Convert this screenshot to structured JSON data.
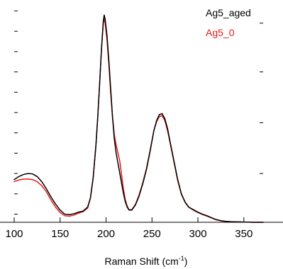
{
  "chart_data": {
    "type": "line",
    "title": "",
    "xlabel": "Raman Shift (cm",
    "xlabel_sup": "-1",
    "xlabel_suffix": ")",
    "ylabel": "",
    "xlim": [
      100,
      371
    ],
    "ylim": [
      0,
      1.08
    ],
    "xticks": [
      100,
      150,
      200,
      250,
      300,
      350
    ],
    "yticks_left": [
      0.04,
      0.14,
      0.24,
      0.34,
      0.44,
      0.54,
      0.64,
      0.74,
      0.84,
      0.94,
      1.04
    ],
    "yticks_right": [
      0.24,
      0.49,
      0.74,
      0.98
    ],
    "grid": false,
    "legend_position": "top-right",
    "series": [
      {
        "name": "Ag5_aged",
        "color": "#000000",
        "x": [
          100,
          105,
          110,
          115,
          120,
          125,
          130,
          135,
          140,
          145,
          150,
          155,
          160,
          165,
          170,
          175,
          180,
          183,
          186,
          189,
          191,
          193,
          195,
          197,
          198,
          199,
          201,
          203,
          205,
          207,
          209,
          211,
          213,
          215,
          217,
          219,
          221,
          223,
          225,
          228,
          232,
          236,
          240,
          244,
          248,
          252,
          255,
          258,
          261,
          264,
          267,
          270,
          274,
          278,
          282,
          286,
          290,
          295,
          300,
          305,
          310,
          315,
          320,
          325,
          330,
          335,
          340,
          345,
          350,
          355,
          360,
          365,
          371
        ],
        "values": [
          0.21,
          0.225,
          0.235,
          0.24,
          0.238,
          0.225,
          0.2,
          0.165,
          0.125,
          0.09,
          0.06,
          0.04,
          0.038,
          0.042,
          0.05,
          0.055,
          0.075,
          0.12,
          0.22,
          0.38,
          0.52,
          0.68,
          0.85,
          0.99,
          1.02,
          1.0,
          0.92,
          0.8,
          0.66,
          0.52,
          0.41,
          0.34,
          0.29,
          0.24,
          0.19,
          0.14,
          0.1,
          0.075,
          0.06,
          0.06,
          0.085,
          0.13,
          0.19,
          0.26,
          0.35,
          0.45,
          0.5,
          0.53,
          0.535,
          0.51,
          0.46,
          0.39,
          0.3,
          0.21,
          0.14,
          0.1,
          0.075,
          0.062,
          0.05,
          0.04,
          0.032,
          0.022,
          0.013,
          0.008,
          0.005,
          0.003,
          0.002,
          0.002,
          0.001,
          0.001,
          0.0,
          0.0,
          0.0
        ]
      },
      {
        "name": "Ag5_0",
        "color": "#e41a1c",
        "x": [
          100,
          105,
          110,
          115,
          120,
          125,
          130,
          135,
          140,
          145,
          150,
          155,
          160,
          165,
          170,
          175,
          180,
          183,
          186,
          189,
          191,
          193,
          195,
          197,
          198,
          199,
          201,
          203,
          205,
          207,
          209,
          211,
          213,
          215,
          217,
          219,
          221,
          223,
          225,
          228,
          232,
          236,
          240,
          244,
          248,
          252,
          255,
          258,
          261,
          264,
          267,
          270,
          274,
          278,
          282,
          286,
          290,
          295,
          300,
          305,
          310,
          315,
          320,
          325,
          330,
          335,
          340,
          345,
          350,
          355,
          360,
          365,
          371
        ],
        "values": [
          0.2,
          0.208,
          0.212,
          0.213,
          0.21,
          0.2,
          0.18,
          0.15,
          0.11,
          0.075,
          0.048,
          0.032,
          0.03,
          0.035,
          0.045,
          0.052,
          0.07,
          0.12,
          0.22,
          0.38,
          0.52,
          0.68,
          0.85,
          0.98,
          1.0,
          0.98,
          0.9,
          0.78,
          0.64,
          0.52,
          0.43,
          0.38,
          0.34,
          0.3,
          0.23,
          0.16,
          0.11,
          0.08,
          0.062,
          0.062,
          0.088,
          0.135,
          0.195,
          0.265,
          0.355,
          0.45,
          0.495,
          0.52,
          0.525,
          0.5,
          0.45,
          0.385,
          0.295,
          0.205,
          0.138,
          0.098,
          0.074,
          0.06,
          0.048,
          0.038,
          0.03,
          0.021,
          0.012,
          0.007,
          0.004,
          0.003,
          0.002,
          0.001,
          0.001,
          0.001,
          0.0,
          0.0,
          0.0
        ]
      }
    ]
  }
}
